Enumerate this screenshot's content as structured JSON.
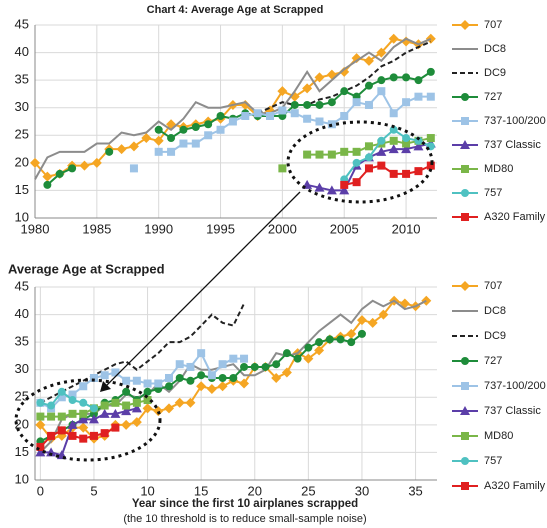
{
  "chart_data": [
    {
      "type": "line",
      "title": "Chart 4: Average Age at Scrapped",
      "x": [
        1980,
        1981,
        1982,
        1983,
        1984,
        1985,
        1986,
        1987,
        1988,
        1989,
        1990,
        1991,
        1992,
        1993,
        1994,
        1995,
        1996,
        1997,
        1998,
        1999,
        2000,
        2001,
        2002,
        2003,
        2004,
        2005,
        2006,
        2007,
        2008,
        2009,
        2010,
        2011,
        2012
      ],
      "xlim": [
        1980,
        2012.5
      ],
      "xticks": [
        1980,
        1985,
        1990,
        1995,
        2000,
        2005,
        2010
      ],
      "ylim": [
        10,
        45
      ],
      "yticks": [
        10,
        15,
        20,
        25,
        30,
        35,
        40,
        45
      ],
      "grid": true,
      "series": [
        {
          "name": "707",
          "color": "#f5a623",
          "marker": "diamond",
          "values": [
            20,
            17.5,
            18,
            19.5,
            19.5,
            20,
            22.5,
            22.5,
            23,
            24.5,
            24,
            27,
            26.5,
            27,
            27.5,
            28,
            30.5,
            30.5,
            28.5,
            29.5,
            33,
            32,
            33.5,
            35.5,
            36,
            36.5,
            39,
            38.5,
            40,
            42.5,
            42,
            41.5,
            42.5
          ]
        },
        {
          "name": "DC8",
          "color": "#8c8c8c",
          "marker": "none",
          "values": [
            17,
            21,
            22,
            22,
            22,
            23.5,
            23.5,
            25.5,
            25,
            25.5,
            27.5,
            26,
            28,
            31,
            30,
            30,
            30.5,
            31,
            29,
            29,
            30,
            33,
            36.5,
            33,
            35,
            37,
            38.5,
            40,
            38.5,
            41,
            42.5,
            41.5,
            42.5
          ]
        },
        {
          "name": "DC9",
          "color": "#222222",
          "marker": "none",
          "line_style": "dashed",
          "values": [
            null,
            null,
            null,
            null,
            null,
            null,
            null,
            null,
            null,
            null,
            null,
            null,
            null,
            null,
            null,
            null,
            null,
            null,
            29,
            30,
            31,
            30.5,
            30.5,
            31.5,
            32,
            33,
            34,
            35.5,
            37.5,
            38.5,
            40,
            41,
            42
          ]
        },
        {
          "name": "727",
          "color": "#1e8c3a",
          "marker": "circle",
          "values": [
            null,
            16,
            18,
            19,
            null,
            null,
            22,
            null,
            null,
            null,
            26,
            24.5,
            26,
            26.5,
            27,
            28.5,
            28,
            29,
            28.5,
            28.5,
            28.5,
            30.5,
            30.5,
            30.5,
            31,
            33,
            32,
            34,
            35,
            35.5,
            35.5,
            35,
            36.5
          ]
        },
        {
          "name": "737-100/200",
          "color": "#9dc3e6",
          "marker": "square",
          "values": [
            null,
            null,
            null,
            null,
            null,
            null,
            null,
            null,
            19,
            null,
            22,
            22,
            23.5,
            23.5,
            25,
            26,
            27.5,
            28.5,
            29,
            28.5,
            29.5,
            29,
            28,
            27.5,
            27,
            28.5,
            31,
            30.5,
            33,
            29,
            31,
            32,
            32
          ]
        },
        {
          "name": "737 Classic",
          "color": "#5b3ea8",
          "marker": "triangle",
          "values": [
            null,
            null,
            null,
            null,
            null,
            null,
            null,
            null,
            null,
            null,
            null,
            null,
            null,
            null,
            null,
            null,
            null,
            null,
            null,
            null,
            null,
            null,
            16,
            15.5,
            15,
            15,
            19.5,
            21,
            22,
            22.5,
            22.5,
            23,
            23.5
          ]
        },
        {
          "name": "MD80",
          "color": "#7ab648",
          "marker": "square",
          "values": [
            null,
            null,
            null,
            null,
            null,
            null,
            null,
            null,
            null,
            null,
            null,
            null,
            null,
            null,
            null,
            null,
            null,
            null,
            null,
            null,
            19,
            null,
            21.5,
            21.5,
            21.5,
            22,
            22,
            23,
            23.5,
            24,
            23.5,
            24,
            24.5
          ]
        },
        {
          "name": "757",
          "color": "#4fc1c1",
          "marker": "circle",
          "values": [
            null,
            null,
            null,
            null,
            null,
            null,
            null,
            null,
            null,
            null,
            null,
            null,
            null,
            null,
            null,
            null,
            null,
            null,
            null,
            null,
            null,
            null,
            null,
            null,
            null,
            17,
            20,
            21,
            24,
            26,
            24.5,
            24,
            23
          ]
        },
        {
          "name": "A320 Family",
          "color": "#e02020",
          "marker": "square",
          "values": [
            null,
            null,
            null,
            null,
            null,
            null,
            null,
            null,
            null,
            null,
            null,
            null,
            null,
            null,
            null,
            null,
            null,
            null,
            null,
            null,
            null,
            null,
            null,
            null,
            null,
            16,
            16.5,
            19,
            19.5,
            18,
            18,
            18.5,
            19.5
          ]
        }
      ]
    },
    {
      "type": "line",
      "title": "Average Age at Scrapped",
      "x_label": "Year since the first 10 airplanes scrapped",
      "subtitle": "(the 10 threshold is to reduce small-sample noise)",
      "x": [
        0,
        1,
        2,
        3,
        4,
        5,
        6,
        7,
        8,
        9,
        10,
        11,
        12,
        13,
        14,
        15,
        16,
        17,
        18,
        19,
        20,
        21,
        22,
        23,
        24,
        25,
        26,
        27,
        28,
        29,
        30,
        31,
        32,
        33,
        34,
        35,
        36
      ],
      "xlim": [
        -0.5,
        37
      ],
      "xticks": [
        0,
        5,
        10,
        15,
        20,
        25,
        30,
        35
      ],
      "ylim": [
        10,
        45
      ],
      "yticks": [
        10,
        15,
        20,
        25,
        30,
        35,
        40,
        45
      ],
      "grid": true,
      "series": [
        {
          "name": "707",
          "color": "#f5a623",
          "marker": "diamond",
          "values": [
            20,
            17.5,
            18,
            19.5,
            19.5,
            17.5,
            18,
            20,
            20,
            20.5,
            23,
            22.5,
            23,
            24,
            24,
            27,
            26.5,
            27,
            28,
            27.5,
            30.5,
            30.5,
            28.5,
            29.5,
            33,
            32,
            33.5,
            35.5,
            36,
            36.5,
            39,
            38.5,
            40,
            42.5,
            42,
            41.5,
            42.5
          ]
        },
        {
          "name": "DC8",
          "color": "#8c8c8c",
          "marker": "none",
          "values": [
            15,
            17,
            21,
            22,
            22,
            22,
            23.5,
            23.5,
            25.5,
            25,
            25.5,
            27.5,
            26,
            28,
            31,
            30,
            30,
            30.5,
            31,
            29,
            29,
            30,
            33,
            32.5,
            33,
            35,
            37,
            38.5,
            40,
            38.5,
            41,
            42.5,
            41.5,
            42.5,
            41,
            41.5,
            42.5
          ]
        },
        {
          "name": "DC9",
          "color": "#222222",
          "marker": "none",
          "line_style": "dashed",
          "values": [
            24,
            25,
            26,
            27,
            28,
            29,
            30,
            31,
            31.5,
            30,
            31.5,
            33,
            35,
            35,
            36,
            38,
            40,
            38.5,
            38,
            42,
            null,
            null,
            null,
            null,
            null,
            null,
            null,
            null,
            null,
            null,
            null,
            null,
            null,
            null,
            null,
            null,
            null
          ]
        },
        {
          "name": "727",
          "color": "#1e8c3a",
          "marker": "circle",
          "values": [
            17,
            18,
            19,
            20,
            21,
            22,
            24,
            24.5,
            26,
            24.5,
            26,
            26.5,
            27,
            28.5,
            28,
            29,
            28.5,
            28.5,
            28.5,
            30.5,
            30.5,
            30.5,
            31,
            33,
            32,
            34,
            35,
            35.5,
            35.5,
            35,
            36.5,
            null,
            null,
            null,
            null,
            null,
            null
          ]
        },
        {
          "name": "737-100/200",
          "color": "#9dc3e6",
          "marker": "square",
          "values": [
            24,
            23,
            25,
            25.5,
            27,
            28.5,
            29,
            29.5,
            28,
            28,
            27.5,
            27.5,
            28.5,
            31,
            30.5,
            33,
            29,
            31,
            32,
            32,
            null,
            null,
            null,
            null,
            null,
            null,
            null,
            null,
            null,
            null,
            null,
            null,
            null,
            null,
            null,
            null,
            null
          ]
        },
        {
          "name": "737 Classic",
          "color": "#5b3ea8",
          "marker": "triangle",
          "values": [
            15,
            15,
            14.5,
            20,
            21,
            21,
            22,
            22,
            22.5,
            23,
            null,
            null,
            null,
            null,
            null,
            null,
            null,
            null,
            null,
            null,
            null,
            null,
            null,
            null,
            null,
            null,
            null,
            null,
            null,
            null,
            null,
            null,
            null,
            null,
            null,
            null,
            null
          ]
        },
        {
          "name": "MD80",
          "color": "#7ab648",
          "marker": "square",
          "values": [
            21.5,
            21.5,
            21.5,
            22,
            22,
            23,
            23.5,
            24,
            23.5,
            24,
            24.5,
            null,
            null,
            null,
            null,
            null,
            null,
            null,
            null,
            null,
            null,
            null,
            null,
            null,
            null,
            null,
            null,
            null,
            null,
            null,
            null,
            null,
            null,
            null,
            null,
            null,
            null
          ]
        },
        {
          "name": "757",
          "color": "#4fc1c1",
          "marker": "circle",
          "values": [
            24,
            23.5,
            26,
            24.5,
            24,
            23,
            null,
            null,
            null,
            null,
            null,
            null,
            null,
            null,
            null,
            null,
            null,
            null,
            null,
            null,
            null,
            null,
            null,
            null,
            null,
            null,
            null,
            null,
            null,
            null,
            null,
            null,
            null,
            null,
            null,
            null,
            null
          ]
        },
        {
          "name": "A320 Family",
          "color": "#e02020",
          "marker": "square",
          "values": [
            16,
            18,
            19,
            18,
            17.5,
            18,
            18.5,
            19.5,
            null,
            null,
            null,
            null,
            null,
            null,
            null,
            null,
            null,
            null,
            null,
            null,
            null,
            null,
            null,
            null,
            null,
            null,
            null,
            null,
            null,
            null,
            null,
            null,
            null,
            null,
            null,
            null,
            null
          ]
        }
      ]
    }
  ]
}
